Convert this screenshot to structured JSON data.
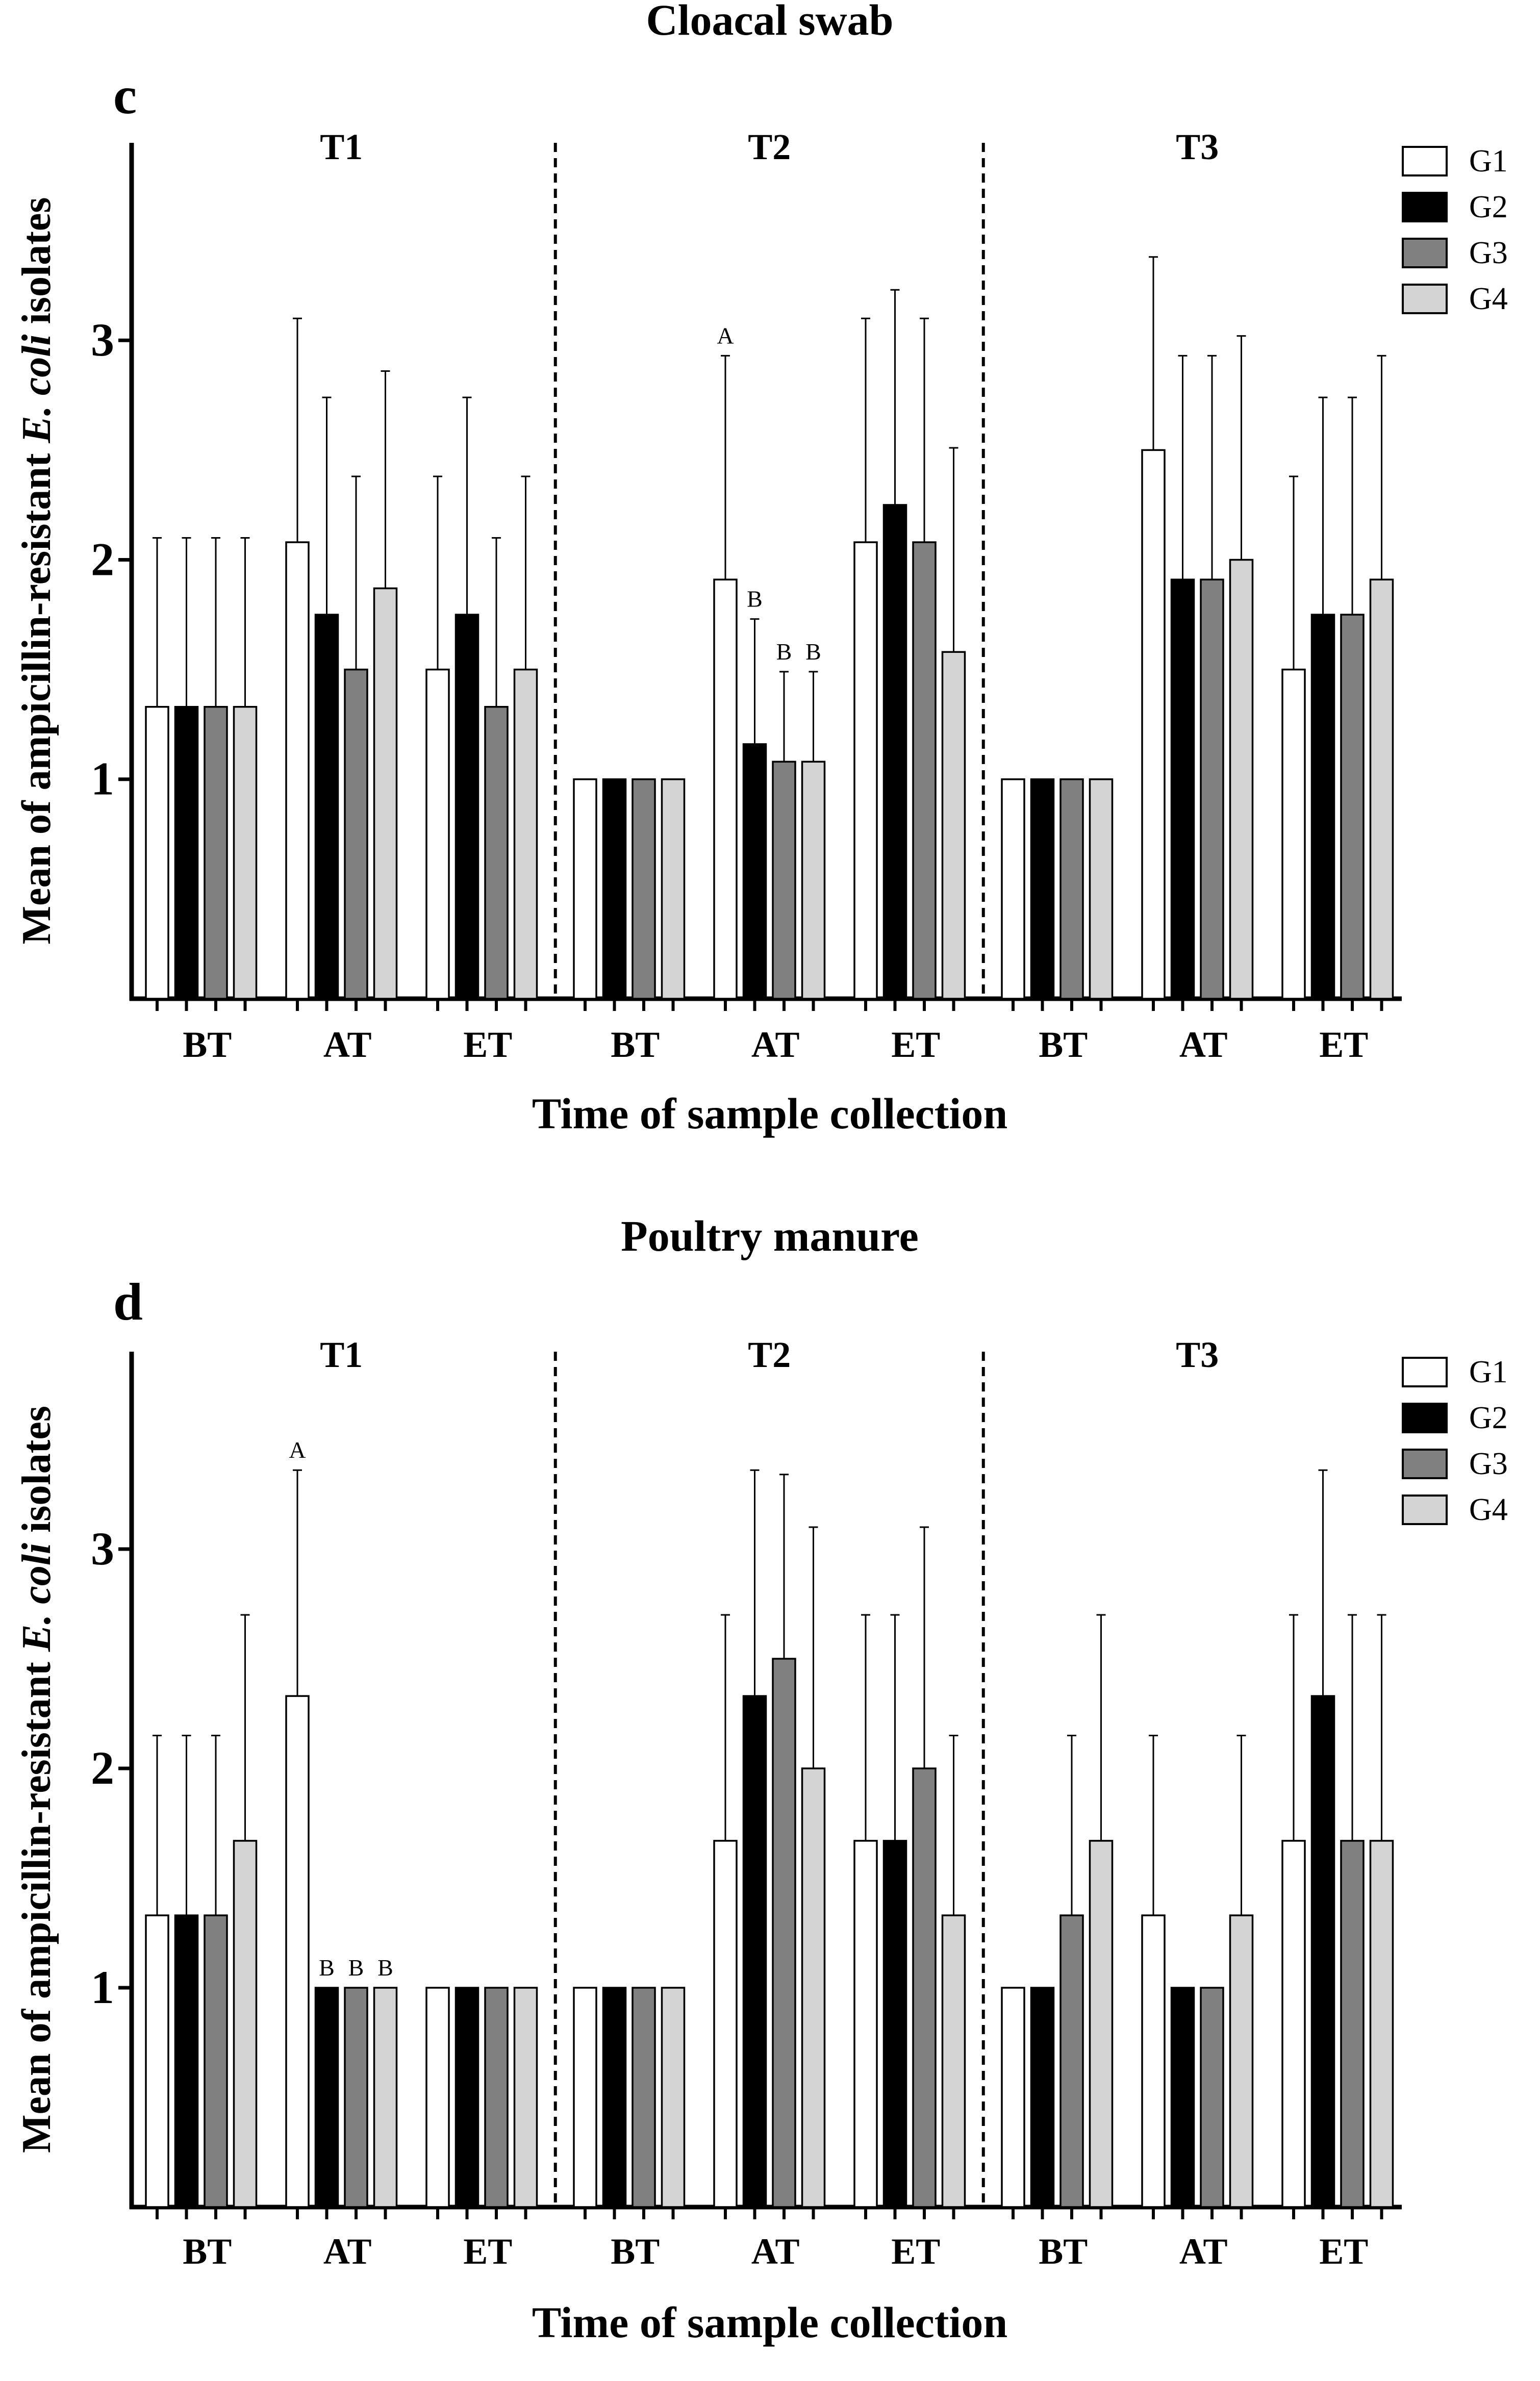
{
  "chart_data": [
    {
      "type": "bar",
      "panel_label": "c",
      "title": "Cloacal swab",
      "xlabel": "Time of sample collection",
      "ylabel_parts": [
        "Mean of ampicillin-resistant ",
        "E. coli",
        " isolates"
      ],
      "yticks": [
        "1",
        "2",
        "3"
      ],
      "ylim": [
        0,
        3.9
      ],
      "legend_position": "top-right",
      "legend": [
        "G1",
        "G2",
        "G3",
        "G4"
      ],
      "series_colors": [
        "#ffffff",
        "#000000",
        "#808080",
        "#d4d4d4"
      ],
      "treatments": [
        {
          "name": "T1",
          "categories": [
            {
              "label": "BT",
              "values": [
                1.33,
                1.33,
                1.33,
                1.33
              ],
              "errors": [
                2.1,
                2.1,
                2.1,
                2.1
              ],
              "letters": [
                "",
                "",
                "",
                ""
              ]
            },
            {
              "label": "AT",
              "values": [
                2.08,
                1.75,
                1.5,
                1.87
              ],
              "errors": [
                3.1,
                2.74,
                2.38,
                2.86
              ],
              "letters": [
                "",
                "",
                "",
                ""
              ]
            },
            {
              "label": "ET",
              "values": [
                1.5,
                1.75,
                1.33,
                1.5
              ],
              "errors": [
                2.38,
                2.74,
                2.1,
                2.38
              ],
              "letters": [
                "",
                "",
                "",
                ""
              ]
            }
          ]
        },
        {
          "name": "T2",
          "categories": [
            {
              "label": "BT",
              "values": [
                1.0,
                1.0,
                1.0,
                1.0
              ],
              "errors": [
                1.0,
                1.0,
                1.0,
                1.0
              ],
              "letters": [
                "",
                "",
                "",
                ""
              ]
            },
            {
              "label": "AT",
              "values": [
                1.91,
                1.16,
                1.08,
                1.08
              ],
              "errors": [
                2.93,
                1.73,
                1.49,
                1.49
              ],
              "letters": [
                "A",
                "B",
                "B",
                "B"
              ]
            },
            {
              "label": "ET",
              "values": [
                2.08,
                2.25,
                2.08,
                1.58
              ],
              "errors": [
                3.1,
                3.23,
                3.1,
                2.51
              ],
              "letters": [
                "",
                "",
                "",
                ""
              ]
            }
          ]
        },
        {
          "name": "T3",
          "categories": [
            {
              "label": "BT",
              "values": [
                1.0,
                1.0,
                1.0,
                1.0
              ],
              "errors": [
                1.0,
                1.0,
                1.0,
                1.0
              ],
              "letters": [
                "",
                "",
                "",
                ""
              ]
            },
            {
              "label": "AT",
              "values": [
                2.5,
                1.91,
                1.91,
                2.0
              ],
              "errors": [
                3.38,
                2.93,
                2.93,
                3.02
              ],
              "letters": [
                "",
                "",
                "",
                ""
              ]
            },
            {
              "label": "ET",
              "values": [
                1.5,
                1.75,
                1.75,
                1.91
              ],
              "errors": [
                2.38,
                2.74,
                2.74,
                2.93
              ],
              "letters": [
                "",
                "",
                "",
                ""
              ]
            }
          ]
        }
      ]
    },
    {
      "type": "bar",
      "panel_label": "d",
      "title": "Poultry manure",
      "xlabel": "Time of sample collection",
      "ylabel_parts": [
        "Mean of ampicillin-resistant ",
        "E. coli",
        " isolates"
      ],
      "yticks": [
        "1",
        "2",
        "3"
      ],
      "ylim": [
        0,
        3.9
      ],
      "legend_position": "top-right",
      "legend": [
        "G1",
        "G2",
        "G3",
        "G4"
      ],
      "series_colors": [
        "#ffffff",
        "#000000",
        "#808080",
        "#d4d4d4"
      ],
      "treatments": [
        {
          "name": "T1",
          "categories": [
            {
              "label": "BT",
              "values": [
                1.33,
                1.33,
                1.33,
                1.67
              ],
              "errors": [
                2.15,
                2.15,
                2.15,
                2.7
              ],
              "letters": [
                "",
                "",
                "",
                ""
              ]
            },
            {
              "label": "AT",
              "values": [
                2.33,
                1.0,
                1.0,
                1.0
              ],
              "errors": [
                3.36,
                1.0,
                1.0,
                1.0
              ],
              "letters": [
                "A",
                "B",
                "B",
                "B"
              ]
            },
            {
              "label": "ET",
              "values": [
                1.0,
                1.0,
                1.0,
                1.0
              ],
              "errors": [
                1.0,
                1.0,
                1.0,
                1.0
              ],
              "letters": [
                "",
                "",
                "",
                ""
              ]
            }
          ]
        },
        {
          "name": "T2",
          "categories": [
            {
              "label": "BT",
              "values": [
                1.0,
                1.0,
                1.0,
                1.0
              ],
              "errors": [
                1.0,
                1.0,
                1.0,
                1.0
              ],
              "letters": [
                "",
                "",
                "",
                ""
              ]
            },
            {
              "label": "AT",
              "values": [
                1.67,
                2.33,
                2.5,
                2.0
              ],
              "errors": [
                2.7,
                3.36,
                3.34,
                3.1
              ],
              "letters": [
                "",
                "",
                "",
                ""
              ]
            },
            {
              "label": "ET",
              "values": [
                1.67,
                1.67,
                2.0,
                1.33
              ],
              "errors": [
                2.7,
                2.7,
                3.1,
                2.15
              ],
              "letters": [
                "",
                "",
                "",
                ""
              ]
            }
          ]
        },
        {
          "name": "T3",
          "categories": [
            {
              "label": "BT",
              "values": [
                1.0,
                1.0,
                1.33,
                1.67
              ],
              "errors": [
                1.0,
                1.0,
                2.15,
                2.7
              ],
              "letters": [
                "",
                "",
                "",
                ""
              ]
            },
            {
              "label": "AT",
              "values": [
                1.33,
                1.0,
                1.0,
                1.33
              ],
              "errors": [
                2.15,
                1.0,
                1.0,
                2.15
              ],
              "letters": [
                "",
                "",
                "",
                ""
              ]
            },
            {
              "label": "ET",
              "values": [
                1.67,
                2.33,
                1.67,
                1.67
              ],
              "errors": [
                2.7,
                3.36,
                2.7,
                2.7
              ],
              "letters": [
                "",
                "",
                "",
                ""
              ]
            }
          ]
        }
      ]
    }
  ]
}
